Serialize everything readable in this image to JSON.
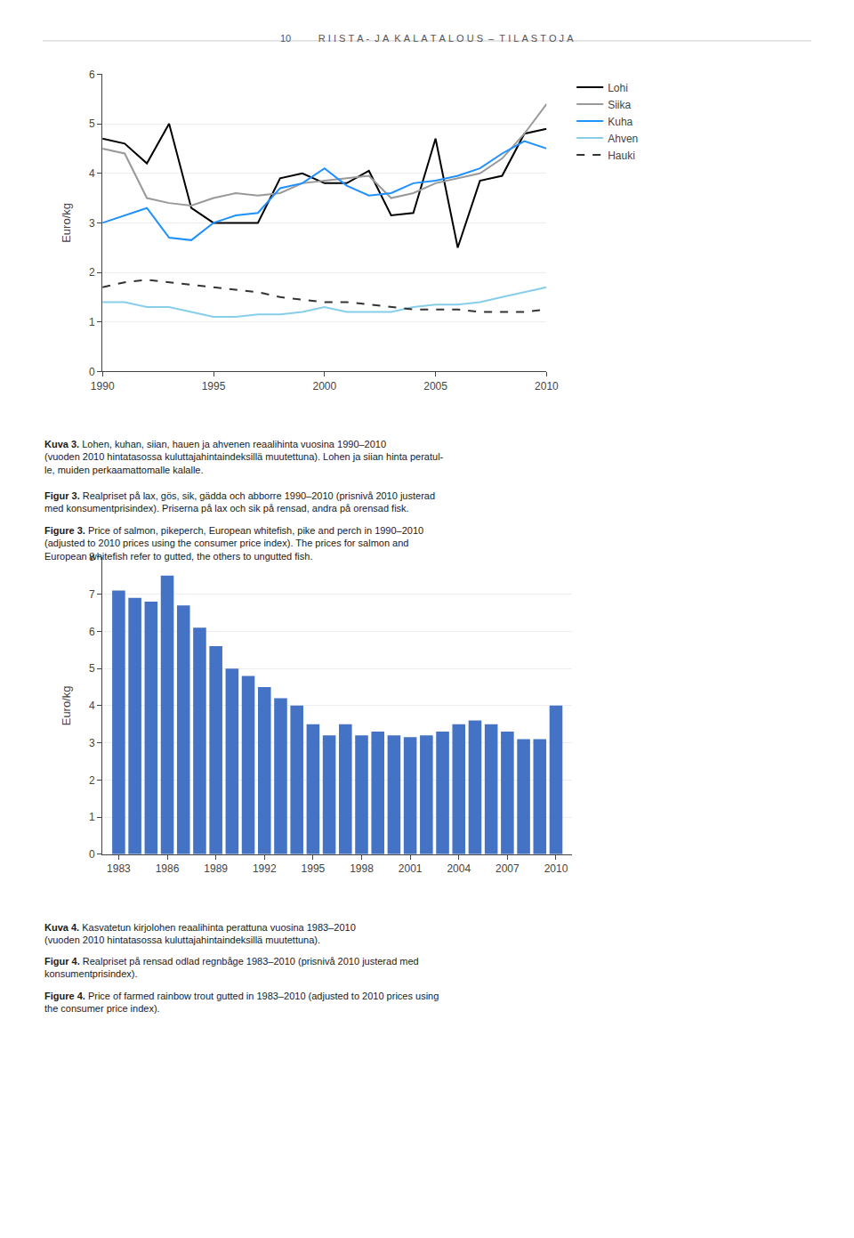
{
  "title": "10          R I I S T A -  J A  K A L A T A L O U S  –  T I L A S T O J A",
  "chart_data": [
    {
      "type": "line",
      "ylabel": "Euro/kg",
      "x": [
        1990,
        1991,
        1992,
        1993,
        1994,
        1995,
        1996,
        1997,
        1998,
        1999,
        2000,
        2001,
        2002,
        2003,
        2004,
        2005,
        2006,
        2007,
        2008,
        2009,
        2010
      ],
      "series": [
        {
          "name": "Lohi",
          "color": "#000000",
          "line_style": "solid",
          "values": [
            4.7,
            4.6,
            4.2,
            5.0,
            3.3,
            3.0,
            3.0,
            3.0,
            3.9,
            4.0,
            3.8,
            3.8,
            4.05,
            3.15,
            3.2,
            4.7,
            2.5,
            3.85,
            3.95,
            4.8,
            4.9
          ]
        },
        {
          "name": "Siika",
          "color": "#999999",
          "line_style": "solid",
          "values": [
            4.5,
            4.4,
            3.5,
            3.4,
            3.35,
            3.5,
            3.6,
            3.55,
            3.6,
            3.8,
            3.85,
            3.9,
            3.95,
            3.5,
            3.6,
            3.8,
            3.9,
            4.0,
            4.3,
            4.8,
            5.4
          ]
        },
        {
          "name": "Kuha",
          "color": "#1e90ff",
          "line_style": "solid",
          "values": [
            3.0,
            3.15,
            3.3,
            2.7,
            2.65,
            3.0,
            3.15,
            3.2,
            3.7,
            3.8,
            4.1,
            3.75,
            3.55,
            3.6,
            3.8,
            3.85,
            3.95,
            4.1,
            4.4,
            4.65,
            4.5
          ]
        },
        {
          "name": "Ahven",
          "color": "#87ceeb",
          "line_style": "solid",
          "values": [
            1.4,
            1.4,
            1.3,
            1.3,
            1.2,
            1.1,
            1.1,
            1.15,
            1.15,
            1.2,
            1.3,
            1.2,
            1.2,
            1.2,
            1.3,
            1.35,
            1.35,
            1.4,
            1.5,
            1.6,
            1.7
          ]
        },
        {
          "name": "Hauki",
          "color": "#333333",
          "line_style": "dashed",
          "values": [
            1.7,
            1.8,
            1.85,
            1.8,
            1.75,
            1.7,
            1.65,
            1.6,
            1.5,
            1.45,
            1.4,
            1.4,
            1.35,
            1.3,
            1.25,
            1.25,
            1.25,
            1.2,
            1.2,
            1.2,
            1.25
          ]
        }
      ],
      "xlim": [
        1990,
        2010
      ],
      "xticks": [
        1990,
        1995,
        2000,
        2005,
        2010
      ],
      "ylim": [
        0,
        6
      ],
      "yticks": [
        0,
        1,
        2,
        3,
        4,
        5,
        6
      ],
      "grid": "y",
      "legend": "right",
      "annotations": [
        {
          "label": "Kuva 3.",
          "text": " Lohen, kuhan, siian, hauen ja ahvenen reaalihinta vuosina 1990–2010\n(vuoden 2010 hintatasossa kuluttajahintaindeksillä muutettuna). Lohen ja siian hinta peratul-\nle, muiden perkaamattomalle kalalle."
        },
        {
          "label": "Figur 3.",
          "text": " Realpriset på lax, gös, sik, gädda och abborre 1990–2010 (prisnivå 2010 justerad\nmed konsumentprisindex). Priserna på lax och sik på rensad, andra på orensad fisk."
        },
        {
          "label": "Figure 3.",
          "text": " Price of salmon, pikeperch, European whitefish, pike and perch in 1990–2010\n(adjusted to 2010 prices using the consumer price index). The prices for salmon and\nEuropean whitefish refer to gutted, the others to ungutted fish."
        }
      ]
    },
    {
      "type": "bar",
      "ylabel": "Euro/kg",
      "x": [
        1983,
        1984,
        1985,
        1986,
        1987,
        1988,
        1989,
        1990,
        1991,
        1992,
        1993,
        1994,
        1995,
        1996,
        1997,
        1998,
        1999,
        2000,
        2001,
        2002,
        2003,
        2004,
        2005,
        2006,
        2007,
        2008,
        2009,
        2010
      ],
      "values": [
        7.1,
        6.9,
        6.8,
        7.5,
        6.7,
        6.1,
        5.6,
        5.0,
        4.8,
        4.5,
        4.2,
        4.0,
        3.5,
        3.2,
        3.5,
        3.2,
        3.3,
        3.2,
        3.15,
        3.2,
        3.3,
        3.5,
        3.6,
        3.5,
        3.3,
        3.1,
        3.1,
        4.0
      ],
      "color": "#4472C4",
      "xlim": [
        1982,
        2011
      ],
      "xticks": [
        1983,
        1986,
        1989,
        1992,
        1995,
        1998,
        2001,
        2004,
        2007,
        2010
      ],
      "ylim": [
        0,
        8
      ],
      "yticks": [
        0,
        1,
        2,
        3,
        4,
        5,
        6,
        7,
        8
      ],
      "grid": "y",
      "annotations": [
        {
          "label": "Kuva 4.",
          "text": " Kasvatetun kirjolohen reaalihinta perattuna vuosina 1983–2010\n(vuoden 2010 hintatasossa kuluttajahintaindeksillä muutettuna)."
        },
        {
          "label": "Figur 4.",
          "text": " Realpriset på rensad odlad regnbåge 1983–2010 (prisnivå 2010 justerad med\nkonsumentprisindex)."
        },
        {
          "label": "Figure 4.",
          "text": " Price of farmed rainbow trout gutted in 1983–2010 (adjusted to 2010 prices using\nthe consumer price index)."
        }
      ]
    }
  ]
}
